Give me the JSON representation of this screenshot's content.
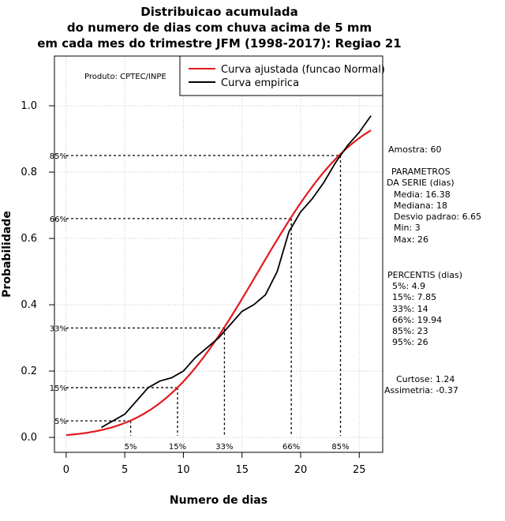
{
  "chart_data": {
    "type": "line",
    "title": [
      "Distribuicao acumulada",
      "do numero de dias com chuva acima de 5 mm",
      "em cada mes do trimestre JFM (1998-2017): Regiao 21"
    ],
    "xlabel": "Numero de dias",
    "ylabel": "Probabilidade",
    "xlim": [
      -1,
      27
    ],
    "ylim": [
      -0.045,
      1.15
    ],
    "xticks": [
      0,
      5,
      10,
      15,
      20,
      25
    ],
    "xtick_labels": [
      "0",
      "5",
      "10",
      "15",
      "20",
      "25"
    ],
    "yticks": [
      0.0,
      0.2,
      0.4,
      0.6,
      0.8,
      1.0
    ],
    "ytick_labels": [
      "0.0",
      "0.2",
      "0.4",
      "0.6",
      "0.8",
      "1.0"
    ],
    "grid": true,
    "credit": "Produto: CPTEC/INPE",
    "legend_position": "top-right",
    "series": [
      {
        "name": "Curva ajustada (funcao Normal)",
        "color": "#e31a1c",
        "kind": "normal_cdf",
        "mean": 16.38,
        "sd": 6.65,
        "x_range": [
          0,
          26
        ]
      },
      {
        "name": "Curva empirica",
        "color": "#000000",
        "x": [
          3,
          4,
          5,
          6,
          7,
          8,
          9,
          10,
          11,
          12,
          13,
          14,
          15,
          16,
          17,
          18,
          19,
          20,
          21,
          22,
          23,
          24,
          25,
          26
        ],
        "y": [
          0.03,
          0.05,
          0.07,
          0.11,
          0.15,
          0.17,
          0.18,
          0.2,
          0.24,
          0.27,
          0.3,
          0.34,
          0.38,
          0.4,
          0.43,
          0.5,
          0.62,
          0.68,
          0.72,
          0.77,
          0.83,
          0.88,
          0.92,
          0.97
        ]
      }
    ],
    "percentile_markers": [
      {
        "label": "5%",
        "prob": 0.05,
        "x": 5.5
      },
      {
        "label": "15%",
        "prob": 0.15,
        "x": 9.5
      },
      {
        "label": "33%",
        "prob": 0.33,
        "x": 13.5
      },
      {
        "label": "66%",
        "prob": 0.66,
        "x": 19.2
      },
      {
        "label": "85%",
        "prob": 0.85,
        "x": 23.4
      }
    ],
    "annotations": {
      "sample": "Amostra: 60",
      "params_title": [
        "PARAMETROS",
        "DA SERIE (dias)"
      ],
      "params": [
        "Media: 16.38",
        "Mediana: 18",
        "Desvio padrao: 6.65",
        "Min: 3",
        "Max: 26"
      ],
      "percentiles_title": "PERCENTIS (dias)",
      "percentiles": [
        "5%: 4.9",
        "15%: 7.85",
        "33%: 14",
        "66%: 19.94",
        "85%: 23",
        "95%: 26"
      ],
      "kurtosis": "Curtose: 1.24",
      "skewness": "Assimetria: -0.37"
    }
  }
}
